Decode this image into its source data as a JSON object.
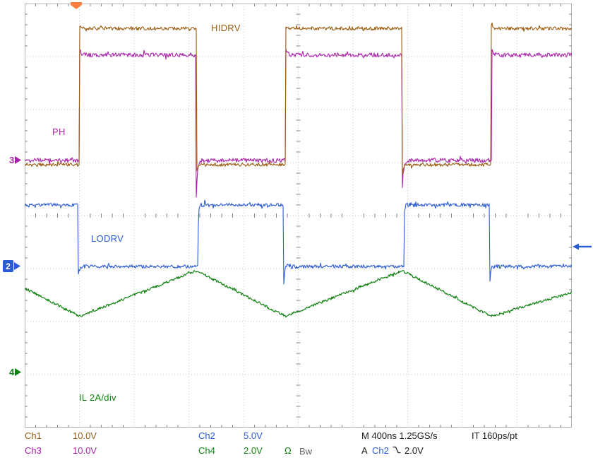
{
  "colors": {
    "ch1": "#9a5b10",
    "ch2": "#2a5bd7",
    "ch3": "#ab22ab",
    "ch4": "#128312",
    "trigger": "#ff7f40",
    "text": "#1a1a1a",
    "grid_dot": "#c6c6c6",
    "grid_tick": "#8a8a8a",
    "border": "#b4b4b4",
    "background": "#ffffff"
  },
  "wave_labels": {
    "hidrv": "HIDRV",
    "ph": "PH",
    "lodrv": "LODRV",
    "il": "IL 2A/div"
  },
  "markers": {
    "ch3_ref": "3",
    "ch2_ref": "2",
    "ch4_ref": "4"
  },
  "readout": {
    "ch1_label": "Ch1",
    "ch1_scale": "10.0V",
    "ch2_label": "Ch2",
    "ch2_scale": "5.0V",
    "ch3_label": "Ch3",
    "ch3_scale": "10.0V",
    "ch4_label": "Ch4",
    "ch4_scale": "2.0V",
    "coupling": "Ω",
    "bandwidth": "Bw",
    "timebase": "M 400ns 1.25GS/s",
    "interp": "IT 160ps/pt",
    "trig_mode": "A",
    "trig_source": "Ch2",
    "trig_level": "2.0V"
  },
  "chart_data": {
    "type": "line",
    "subtype": "oscilloscope",
    "x_unit": "ns",
    "x_range": [
      0,
      4000
    ],
    "ns_per_div": 400,
    "sample_rate_label": "1.25GS/s",
    "interpolation_label": "IT 160ps/pt",
    "divisions": {
      "h": 10,
      "v": 8
    },
    "annotations": [
      "HIDRV",
      "PH",
      "LODRV",
      "IL 2A/div"
    ],
    "trigger": {
      "mode": "A",
      "source": "Ch2",
      "slope": "falling",
      "level": "2.0V",
      "position_div": 1.0,
      "level_div_from_top": 4.56
    },
    "series": [
      {
        "name": "HIDRV",
        "channel": "Ch1",
        "scale_label": "10.0V",
        "color_key": "ch1",
        "kind": "square",
        "initial": "low",
        "high_div": 0.47,
        "low_div": 3.04,
        "edges": [
          {
            "t": 400,
            "dir": "rise"
          },
          {
            "t": 1255,
            "dir": "fall"
          },
          {
            "t": 1905,
            "dir": "rise"
          },
          {
            "t": 2760,
            "dir": "fall"
          },
          {
            "t": 3410,
            "dir": "rise"
          }
        ],
        "noise": 2.4,
        "overshoot_rise": 6,
        "undershoot_fall": 16
      },
      {
        "name": "LODRV",
        "channel": "Ch2",
        "scale_label": "5.0V",
        "color_key": "ch2",
        "kind": "square",
        "initial": "high",
        "high_div": 3.8,
        "low_div": 4.96,
        "edges": [
          {
            "t": 388,
            "dir": "fall"
          },
          {
            "t": 1268,
            "dir": "rise"
          },
          {
            "t": 1892,
            "dir": "fall"
          },
          {
            "t": 2772,
            "dir": "rise"
          },
          {
            "t": 3398,
            "dir": "fall"
          }
        ],
        "noise": 2.2,
        "spike_down": 30
      },
      {
        "name": "PH",
        "channel": "Ch3",
        "scale_label": "10.0V",
        "color_key": "ch3",
        "kind": "square",
        "initial": "low",
        "high_div": 0.97,
        "low_div": 2.96,
        "edges": [
          {
            "t": 402,
            "dir": "rise"
          },
          {
            "t": 1253,
            "dir": "fall"
          },
          {
            "t": 1907,
            "dir": "rise"
          },
          {
            "t": 2758,
            "dir": "fall"
          },
          {
            "t": 3412,
            "dir": "rise"
          }
        ],
        "noise": 3.0,
        "overshoot_rise": 8,
        "undershoot_fall": 60
      },
      {
        "name": "IL",
        "channel": "Ch4",
        "scale_label": "2.0V",
        "per_div_note": "2A/div",
        "color_key": "ch4",
        "kind": "triangle",
        "points": [
          [
            0,
            5.37
          ],
          [
            400,
            5.9
          ],
          [
            1255,
            5.04
          ],
          [
            1905,
            5.9
          ],
          [
            2760,
            5.04
          ],
          [
            3410,
            5.9
          ],
          [
            4000,
            5.45
          ]
        ],
        "noise": 1.8
      }
    ]
  }
}
